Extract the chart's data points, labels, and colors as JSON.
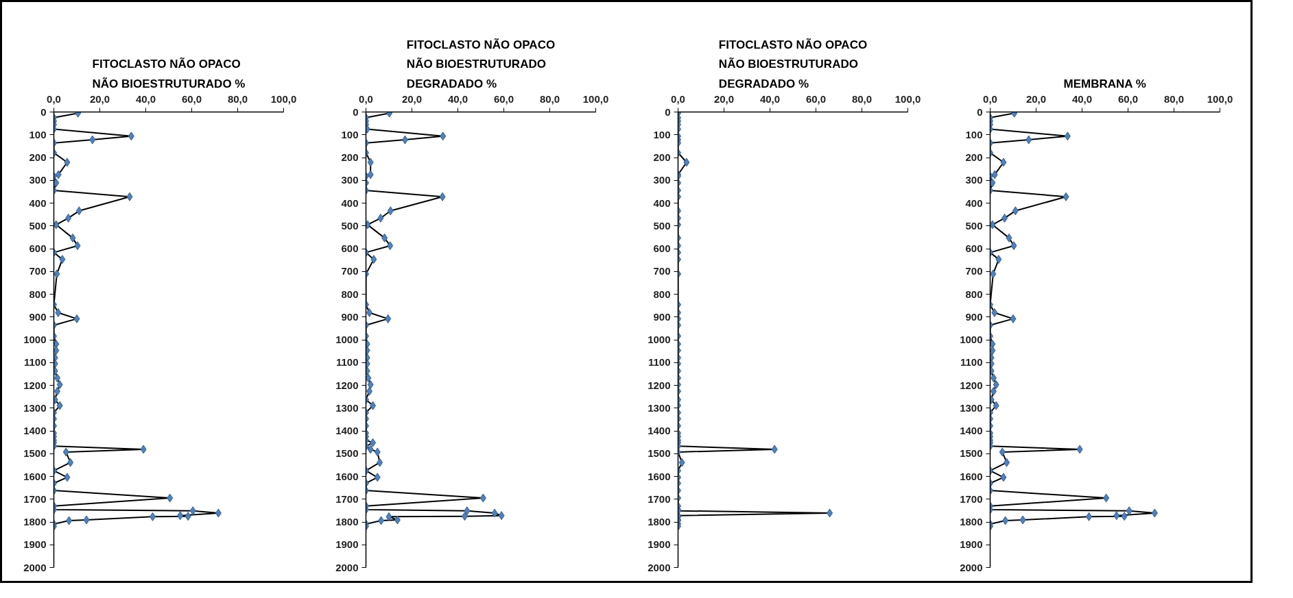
{
  "chart_data": [
    {
      "type": "line",
      "title": "FITOCLASTO NÃO OPACO NÃO BIOESTRUTURADO %",
      "marker": "diamond",
      "grid": false,
      "xlim": [
        0,
        100
      ],
      "xticks": [
        {
          "value": 0,
          "label": "0,0"
        },
        {
          "value": 20,
          "label": "20,0"
        },
        {
          "value": 40,
          "label": "40,0"
        },
        {
          "value": 60,
          "label": "60,0"
        },
        {
          "value": 80,
          "label": "80,0"
        },
        {
          "value": 100,
          "label": "100,0"
        }
      ],
      "ylim": [
        2000,
        0
      ],
      "yticks": [
        0,
        100,
        200,
        300,
        400,
        500,
        600,
        700,
        800,
        900,
        1000,
        1100,
        1200,
        1300,
        1400,
        1500,
        1600,
        1700,
        1800,
        1900,
        2000
      ],
      "series": [
        {
          "color": "#4f81bd",
          "x": [
            10.5,
            0,
            0,
            0,
            0,
            33.7,
            16.8,
            0,
            0,
            5.8,
            2,
            0,
            1,
            0,
            33,
            11,
            6.3,
            1,
            8.2,
            10.3,
            0,
            3.7,
            1.3,
            0,
            1.9,
            10,
            0,
            0,
            1,
            1,
            0.5,
            0.5,
            0.5,
            1.5,
            2.6,
            1.5,
            0.5,
            2.6,
            0,
            0,
            0,
            0,
            0,
            0,
            0,
            0,
            39,
            5.3,
            7.2,
            0,
            5.8,
            0,
            0,
            50.5,
            0,
            0,
            60.5,
            71.6,
            55,
            58.4,
            43,
            14.2,
            6.6,
            0,
            0
          ],
          "values": [
            5,
            25,
            40,
            55,
            75,
            106,
            122,
            136,
            179,
            221,
            275,
            282,
            311,
            344,
            372,
            434,
            466,
            495,
            553,
            587,
            617,
            647,
            711,
            846,
            881,
            908,
            936,
            984,
            1019,
            1047,
            1079,
            1105,
            1137,
            1168,
            1197,
            1226,
            1263,
            1289,
            1320,
            1347,
            1378,
            1410,
            1425,
            1441,
            1452,
            1467,
            1481,
            1493,
            1539,
            1575,
            1604,
            1630,
            1662,
            1695,
            1730,
            1746,
            1751,
            1761,
            1772,
            1775,
            1777,
            1791,
            1794,
            1809,
            1819
          ]
        }
      ]
    },
    {
      "type": "line",
      "title": "FITOCLASTO NÃO OPACO NÃO BIOESTRUTURADO DEGRADADO %",
      "marker": "diamond",
      "grid": false,
      "xlim": [
        0,
        100
      ],
      "xticks": [
        {
          "value": 0,
          "label": "0,0"
        },
        {
          "value": 20,
          "label": "20,0"
        },
        {
          "value": 40,
          "label": "40,0"
        },
        {
          "value": 60,
          "label": "60,0"
        },
        {
          "value": 80,
          "label": "80,0"
        },
        {
          "value": 100,
          "label": "100,0"
        }
      ],
      "ylim": [
        2000,
        0
      ],
      "yticks": [
        0,
        100,
        200,
        300,
        400,
        500,
        600,
        700,
        800,
        900,
        1000,
        1100,
        1200,
        1300,
        1400,
        1500,
        1600,
        1700,
        1800,
        1900,
        2000
      ],
      "series": [
        {
          "color": "#4f81bd",
          "x": [
            10.2,
            0,
            0,
            0,
            0.5,
            33.5,
            17,
            0,
            0,
            2,
            2,
            0,
            0,
            0,
            33.3,
            10.7,
            6.4,
            0.7,
            8.1,
            10.5,
            0,
            3.4,
            0,
            0,
            1.5,
            9.6,
            0,
            0,
            0.5,
            0.5,
            0.5,
            0.5,
            0.5,
            1,
            2,
            1.5,
            0,
            3,
            0,
            0,
            0,
            0,
            0,
            0,
            3,
            0,
            2,
            5,
            6,
            0,
            5,
            0,
            0,
            51,
            0,
            0,
            44,
            56,
            59,
            43,
            10,
            13.7,
            6.6,
            0,
            0
          ],
          "values": [
            5,
            25,
            40,
            55,
            75,
            106,
            122,
            136,
            179,
            221,
            275,
            282,
            311,
            344,
            372,
            434,
            466,
            495,
            553,
            587,
            617,
            647,
            711,
            846,
            881,
            908,
            936,
            984,
            1019,
            1047,
            1079,
            1105,
            1137,
            1168,
            1197,
            1226,
            1263,
            1289,
            1320,
            1347,
            1378,
            1410,
            1425,
            1441,
            1452,
            1467,
            1481,
            1493,
            1539,
            1575,
            1604,
            1630,
            1662,
            1695,
            1730,
            1746,
            1751,
            1761,
            1772,
            1775,
            1777,
            1791,
            1794,
            1809,
            1819
          ]
        }
      ]
    },
    {
      "type": "line",
      "title": "FITOCLASTO NÃO OPACO NÃO BIOESTRUTURADO DEGRADADO %",
      "marker": "diamond",
      "grid": false,
      "xlim": [
        0,
        100
      ],
      "xticks": [
        {
          "value": 0,
          "label": "0,0"
        },
        {
          "value": 20,
          "label": "20,0"
        },
        {
          "value": 40,
          "label": "40,0"
        },
        {
          "value": 60,
          "label": "60,0"
        },
        {
          "value": 80,
          "label": "80,0"
        },
        {
          "value": 100,
          "label": "100,0"
        }
      ],
      "ylim": [
        2000,
        0
      ],
      "yticks": [
        0,
        100,
        200,
        300,
        400,
        500,
        600,
        700,
        800,
        900,
        1000,
        1100,
        1200,
        1300,
        1400,
        1500,
        1600,
        1700,
        1800,
        1900,
        2000
      ],
      "series": [
        {
          "color": "#4f81bd",
          "x": [
            0,
            0,
            0,
            0,
            0,
            0,
            0,
            0,
            0,
            3.7,
            0,
            0,
            0,
            0,
            0,
            0,
            0,
            0,
            0,
            0,
            0,
            0,
            0,
            0,
            0,
            0,
            0,
            0,
            0,
            0,
            0,
            0,
            0,
            0,
            0,
            0,
            0,
            0,
            0,
            0,
            0,
            0,
            0,
            0,
            0,
            0,
            42,
            0,
            1.7,
            0,
            0,
            0,
            0,
            0,
            0,
            0,
            0,
            66,
            0,
            0,
            0,
            0,
            0,
            0,
            0
          ],
          "values": [
            5,
            25,
            40,
            55,
            75,
            106,
            122,
            136,
            179,
            221,
            275,
            282,
            311,
            344,
            372,
            434,
            466,
            495,
            553,
            587,
            617,
            647,
            711,
            846,
            881,
            908,
            936,
            984,
            1019,
            1047,
            1079,
            1105,
            1137,
            1168,
            1197,
            1226,
            1263,
            1289,
            1320,
            1347,
            1378,
            1410,
            1425,
            1441,
            1452,
            1467,
            1481,
            1493,
            1539,
            1575,
            1604,
            1630,
            1662,
            1695,
            1730,
            1746,
            1751,
            1761,
            1772,
            1775,
            1777,
            1791,
            1794,
            1809,
            1819
          ]
        }
      ]
    },
    {
      "type": "line",
      "title": "MEMBRANA %",
      "marker": "diamond",
      "grid": false,
      "xlim": [
        0,
        100
      ],
      "xticks": [
        {
          "value": 0,
          "label": "0,0"
        },
        {
          "value": 20,
          "label": "20,0"
        },
        {
          "value": 40,
          "label": "40,0"
        },
        {
          "value": 60,
          "label": "60,0"
        },
        {
          "value": 80,
          "label": "80,0"
        },
        {
          "value": 100,
          "label": "100,0"
        }
      ],
      "ylim": [
        2000,
        0
      ],
      "yticks": [
        0,
        100,
        200,
        300,
        400,
        500,
        600,
        700,
        800,
        900,
        1000,
        1100,
        1200,
        1300,
        1400,
        1500,
        1600,
        1700,
        1800,
        1900,
        2000
      ],
      "series": [
        {
          "color": "#4f81bd",
          "x": [
            10.5,
            0,
            0,
            0,
            0,
            33.7,
            16.8,
            0,
            0,
            5.8,
            2,
            0,
            1,
            0,
            33,
            11,
            6.3,
            1,
            8.2,
            10.3,
            0,
            3.7,
            1.3,
            0,
            1.9,
            10,
            0,
            0,
            1,
            1,
            0.5,
            0.5,
            0.5,
            1.5,
            2.6,
            1.5,
            0.5,
            2.6,
            0,
            0,
            0,
            0,
            0,
            0,
            0,
            0,
            39,
            5.3,
            7.2,
            0,
            5.8,
            0,
            0,
            50.5,
            0,
            0,
            60.5,
            71.6,
            55,
            58.4,
            43,
            14.2,
            6.6,
            0,
            0
          ],
          "values": [
            5,
            25,
            40,
            55,
            75,
            106,
            122,
            136,
            179,
            221,
            275,
            282,
            311,
            344,
            372,
            434,
            466,
            495,
            553,
            587,
            617,
            647,
            711,
            846,
            881,
            908,
            936,
            984,
            1019,
            1047,
            1079,
            1105,
            1137,
            1168,
            1197,
            1226,
            1263,
            1289,
            1320,
            1347,
            1378,
            1410,
            1425,
            1441,
            1452,
            1467,
            1481,
            1493,
            1539,
            1575,
            1604,
            1630,
            1662,
            1695,
            1730,
            1746,
            1751,
            1761,
            1772,
            1775,
            1777,
            1791,
            1794,
            1809,
            1819
          ]
        }
      ]
    }
  ]
}
